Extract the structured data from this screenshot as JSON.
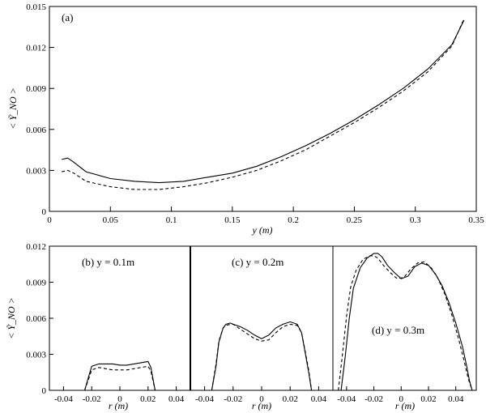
{
  "chart_data": [
    {
      "panel": "a",
      "type": "line",
      "label": "(a)",
      "xlabel": "y (m)",
      "ylabel": "< Ỹ_NO >",
      "xlim": [
        0,
        0.35
      ],
      "ylim": [
        0,
        0.015
      ],
      "x_ticks": [
        "0",
        "0.05",
        "0.1",
        "0.15",
        "0.2",
        "0.25",
        "0.3",
        "0.35"
      ],
      "y_ticks": [
        "0",
        "0.003",
        "0.006",
        "0.009",
        "0.012",
        "0.015"
      ],
      "series": [
        {
          "style": "solid",
          "x": [
            0.01,
            0.015,
            0.02,
            0.03,
            0.05,
            0.07,
            0.09,
            0.11,
            0.13,
            0.15,
            0.17,
            0.19,
            0.21,
            0.23,
            0.25,
            0.27,
            0.29,
            0.31,
            0.33,
            0.34
          ],
          "y": [
            0.0038,
            0.0039,
            0.0036,
            0.0029,
            0.0024,
            0.0022,
            0.0021,
            0.0022,
            0.0025,
            0.0028,
            0.0033,
            0.004,
            0.0048,
            0.0057,
            0.0067,
            0.0078,
            0.009,
            0.0104,
            0.0122,
            0.014
          ]
        },
        {
          "style": "dashed",
          "x": [
            0.01,
            0.015,
            0.02,
            0.03,
            0.05,
            0.07,
            0.09,
            0.11,
            0.13,
            0.15,
            0.17,
            0.19,
            0.21,
            0.23,
            0.25,
            0.27,
            0.29,
            0.31,
            0.33,
            0.34
          ],
          "y": [
            0.0029,
            0.003,
            0.0028,
            0.0022,
            0.0018,
            0.0016,
            0.0016,
            0.0018,
            0.0021,
            0.0025,
            0.003,
            0.0037,
            0.0045,
            0.0055,
            0.0065,
            0.0076,
            0.0088,
            0.0102,
            0.0121,
            0.0141
          ]
        }
      ]
    },
    {
      "panel": "b",
      "type": "line",
      "label": "(b) y = 0.1m",
      "xlabel": "r (m)",
      "ylabel": "< Ỹ_NO >",
      "xlim": [
        -0.05,
        0.05
      ],
      "ylim": [
        0,
        0.012
      ],
      "x_ticks": [
        "-0.04",
        "-0.02",
        "0",
        "0.02",
        "0.04"
      ],
      "y_ticks": [
        "0",
        "0.003",
        "0.006",
        "0.009",
        "0.012"
      ],
      "series": [
        {
          "style": "solid",
          "x": [
            -0.025,
            -0.022,
            -0.02,
            -0.015,
            -0.01,
            -0.005,
            0,
            0.005,
            0.01,
            0.015,
            0.02,
            0.022,
            0.025
          ],
          "y": [
            0,
            0.0012,
            0.002,
            0.0022,
            0.0022,
            0.0022,
            0.0021,
            0.0021,
            0.0022,
            0.0023,
            0.0024,
            0.0019,
            0
          ]
        },
        {
          "style": "dashed",
          "x": [
            -0.025,
            -0.022,
            -0.02,
            -0.015,
            -0.01,
            -0.005,
            0,
            0.005,
            0.01,
            0.015,
            0.02,
            0.022,
            0.025
          ],
          "y": [
            0,
            0.001,
            0.0017,
            0.0019,
            0.0018,
            0.0017,
            0.0017,
            0.0017,
            0.0018,
            0.0019,
            0.002,
            0.0016,
            0
          ]
        }
      ]
    },
    {
      "panel": "c",
      "type": "line",
      "label": "(c) y = 0.2m",
      "xlabel": "r (m)",
      "xlim": [
        -0.05,
        0.05
      ],
      "ylim": [
        0,
        0.012
      ],
      "x_ticks": [
        "-0.04",
        "-0.02",
        "0",
        "0.02",
        "0.04"
      ],
      "series": [
        {
          "style": "solid",
          "x": [
            -0.035,
            -0.032,
            -0.03,
            -0.027,
            -0.025,
            -0.022,
            -0.02,
            -0.015,
            -0.01,
            -0.005,
            0,
            0.005,
            0.01,
            0.015,
            0.02,
            0.025,
            0.028,
            0.03,
            0.033,
            0.035
          ],
          "y": [
            0,
            0.002,
            0.004,
            0.0052,
            0.0055,
            0.0056,
            0.0055,
            0.0053,
            0.005,
            0.0046,
            0.0043,
            0.0046,
            0.0052,
            0.0055,
            0.0057,
            0.0055,
            0.0048,
            0.0035,
            0.0015,
            0
          ]
        },
        {
          "style": "dashed",
          "x": [
            -0.035,
            -0.032,
            -0.03,
            -0.027,
            -0.025,
            -0.022,
            -0.02,
            -0.015,
            -0.01,
            -0.005,
            0,
            0.005,
            0.01,
            0.015,
            0.02,
            0.025,
            0.028,
            0.03,
            0.033,
            0.035
          ],
          "y": [
            0,
            0.0022,
            0.0041,
            0.0052,
            0.0054,
            0.0055,
            0.0055,
            0.0051,
            0.0047,
            0.0043,
            0.0041,
            0.0042,
            0.0048,
            0.0053,
            0.0055,
            0.0054,
            0.0048,
            0.0036,
            0.0017,
            0
          ]
        }
      ]
    },
    {
      "panel": "d",
      "type": "line",
      "label": "(d) y = 0.3m",
      "xlabel": "r (m)",
      "xlim": [
        -0.05,
        0.055
      ],
      "ylim": [
        0,
        0.012
      ],
      "x_ticks": [
        "-0.04",
        "-0.02",
        "0",
        "0.02",
        "0.04"
      ],
      "series": [
        {
          "style": "solid",
          "x": [
            -0.044,
            -0.041,
            -0.038,
            -0.035,
            -0.03,
            -0.025,
            -0.02,
            -0.017,
            -0.014,
            -0.01,
            -0.005,
            0,
            0.005,
            0.01,
            0.015,
            0.02,
            0.025,
            0.03,
            0.035,
            0.04,
            0.045,
            0.048,
            0.05,
            0.052
          ],
          "y": [
            0,
            0.0028,
            0.006,
            0.0085,
            0.0102,
            0.011,
            0.0114,
            0.0114,
            0.0111,
            0.0104,
            0.0098,
            0.0093,
            0.0095,
            0.0103,
            0.0106,
            0.0104,
            0.0097,
            0.0087,
            0.0073,
            0.0056,
            0.0036,
            0.002,
            0.0008,
            0
          ]
        },
        {
          "style": "dashed",
          "x": [
            -0.046,
            -0.043,
            -0.04,
            -0.037,
            -0.033,
            -0.028,
            -0.023,
            -0.02,
            -0.017,
            -0.013,
            -0.008,
            -0.003,
            0.002,
            0.007,
            0.012,
            0.017,
            0.022,
            0.027,
            0.032,
            0.037,
            0.042,
            0.046,
            0.049,
            0.052
          ],
          "y": [
            0,
            0.003,
            0.0062,
            0.0086,
            0.01,
            0.0109,
            0.0112,
            0.0112,
            0.011,
            0.0104,
            0.0098,
            0.0093,
            0.0094,
            0.0101,
            0.0106,
            0.0107,
            0.0102,
            0.0093,
            0.008,
            0.0063,
            0.0043,
            0.0025,
            0.001,
            0
          ]
        }
      ]
    }
  ]
}
